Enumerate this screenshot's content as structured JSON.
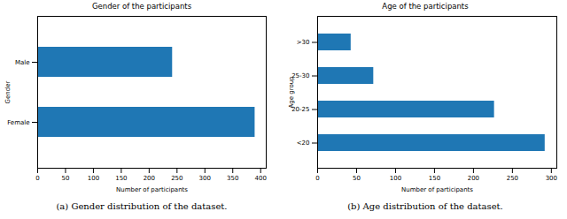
{
  "chart_data": [
    {
      "type": "bar",
      "orientation": "horizontal",
      "title": "Gender of the participants",
      "x_label": "Number of participants",
      "y_label": "Gender",
      "categories": [
        "Male",
        "Female"
      ],
      "values": [
        242,
        390
      ],
      "color": "#1f77b4",
      "xlim": [
        0,
        410
      ],
      "xticks": [
        0,
        50,
        100,
        150,
        200,
        250,
        300,
        350,
        400
      ],
      "grid": false,
      "caption": "(a) Gender distribution of the dataset."
    },
    {
      "type": "bar",
      "orientation": "horizontal",
      "title": "Age of the participants",
      "x_label": "Number of participants",
      "y_label": "Age group",
      "categories": [
        ">30",
        "25-30",
        "20-25",
        "<20"
      ],
      "values": [
        43,
        72,
        227,
        292
      ],
      "color": "#1f77b4",
      "xlim": [
        0,
        307
      ],
      "xticks": [
        0,
        50,
        100,
        150,
        200,
        250,
        300
      ],
      "grid": false,
      "caption": "(b) Age distribution of the dataset."
    }
  ]
}
